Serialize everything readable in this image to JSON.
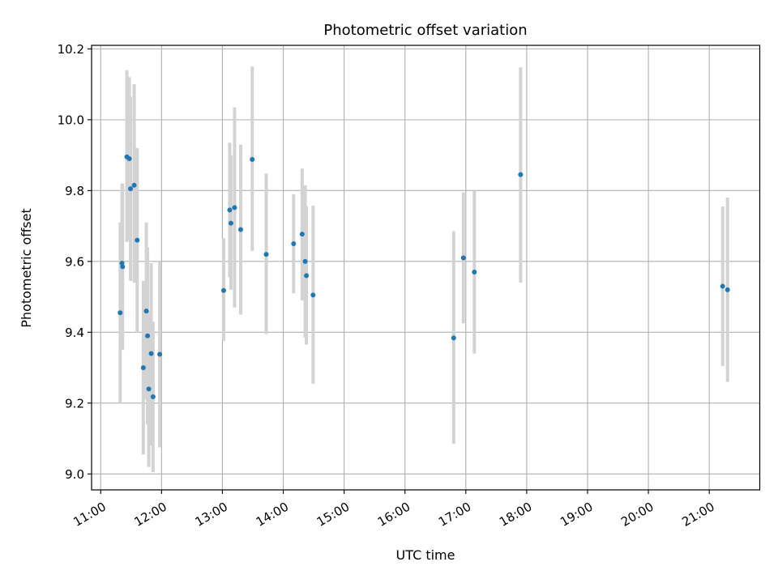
{
  "chart_data": {
    "type": "scatter",
    "title": "Photometric offset variation",
    "xlabel": "UTC time",
    "ylabel": "Photometric offset",
    "x_unit": "hours UTC",
    "xlim": [
      10.85,
      21.83
    ],
    "ylim": [
      8.955,
      10.21
    ],
    "x_ticks": [
      11,
      12,
      13,
      14,
      15,
      16,
      17,
      18,
      19,
      20,
      21
    ],
    "x_tick_labels": [
      "11:00",
      "12:00",
      "13:00",
      "14:00",
      "15:00",
      "16:00",
      "17:00",
      "18:00",
      "19:00",
      "20:00",
      "21:00"
    ],
    "y_ticks": [
      9.0,
      9.2,
      9.4,
      9.6,
      9.8,
      10.0,
      10.2
    ],
    "y_tick_labels": [
      "9.0",
      "9.2",
      "9.4",
      "9.6",
      "9.8",
      "10.0",
      "10.2"
    ],
    "grid": true,
    "point_color": "#1f77b4",
    "errorbar_color": "#d3d3d3",
    "points": [
      {
        "x": 11.32,
        "y": 9.455,
        "lo": 9.2,
        "hi": 9.71
      },
      {
        "x": 11.35,
        "y": 9.595,
        "lo": 9.37,
        "hi": 9.82
      },
      {
        "x": 11.36,
        "y": 9.585,
        "lo": 9.35,
        "hi": 9.82
      },
      {
        "x": 11.43,
        "y": 9.895,
        "lo": 9.655,
        "hi": 10.14
      },
      {
        "x": 11.47,
        "y": 9.89,
        "lo": 9.66,
        "hi": 10.12
      },
      {
        "x": 11.49,
        "y": 9.805,
        "lo": 9.545,
        "hi": 10.065
      },
      {
        "x": 11.55,
        "y": 9.815,
        "lo": 9.54,
        "hi": 10.1
      },
      {
        "x": 11.6,
        "y": 9.66,
        "lo": 9.4,
        "hi": 9.92
      },
      {
        "x": 11.7,
        "y": 9.3,
        "lo": 9.055,
        "hi": 9.545
      },
      {
        "x": 11.75,
        "y": 9.46,
        "lo": 9.21,
        "hi": 9.71
      },
      {
        "x": 11.77,
        "y": 9.39,
        "lo": 9.14,
        "hi": 9.64
      },
      {
        "x": 11.79,
        "y": 9.24,
        "lo": 9.02,
        "hi": 9.46
      },
      {
        "x": 11.83,
        "y": 9.34,
        "lo": 9.08,
        "hi": 9.595
      },
      {
        "x": 11.86,
        "y": 9.218,
        "lo": 9.005,
        "hi": 9.43
      },
      {
        "x": 11.97,
        "y": 9.338,
        "lo": 9.075,
        "hi": 9.6
      },
      {
        "x": 13.02,
        "y": 9.518,
        "lo": 9.375,
        "hi": 9.665
      },
      {
        "x": 13.12,
        "y": 9.745,
        "lo": 9.555,
        "hi": 9.935
      },
      {
        "x": 13.14,
        "y": 9.708,
        "lo": 9.52,
        "hi": 9.9
      },
      {
        "x": 13.2,
        "y": 9.752,
        "lo": 9.47,
        "hi": 10.035
      },
      {
        "x": 13.3,
        "y": 9.69,
        "lo": 9.45,
        "hi": 9.93
      },
      {
        "x": 13.49,
        "y": 9.888,
        "lo": 9.63,
        "hi": 10.15
      },
      {
        "x": 13.72,
        "y": 9.62,
        "lo": 9.395,
        "hi": 9.848
      },
      {
        "x": 14.17,
        "y": 9.65,
        "lo": 9.51,
        "hi": 9.79
      },
      {
        "x": 14.31,
        "y": 9.677,
        "lo": 9.49,
        "hi": 9.862
      },
      {
        "x": 14.36,
        "y": 9.6,
        "lo": 9.385,
        "hi": 9.815
      },
      {
        "x": 14.38,
        "y": 9.56,
        "lo": 9.365,
        "hi": 9.755
      },
      {
        "x": 14.49,
        "y": 9.505,
        "lo": 9.255,
        "hi": 9.757
      },
      {
        "x": 16.8,
        "y": 9.384,
        "lo": 9.085,
        "hi": 9.685
      },
      {
        "x": 16.96,
        "y": 9.61,
        "lo": 9.425,
        "hi": 9.795
      },
      {
        "x": 17.14,
        "y": 9.57,
        "lo": 9.34,
        "hi": 9.8
      },
      {
        "x": 17.9,
        "y": 9.845,
        "lo": 9.54,
        "hi": 10.148
      },
      {
        "x": 21.22,
        "y": 9.53,
        "lo": 9.305,
        "hi": 9.755
      },
      {
        "x": 21.3,
        "y": 9.52,
        "lo": 9.26,
        "hi": 9.78
      }
    ]
  }
}
